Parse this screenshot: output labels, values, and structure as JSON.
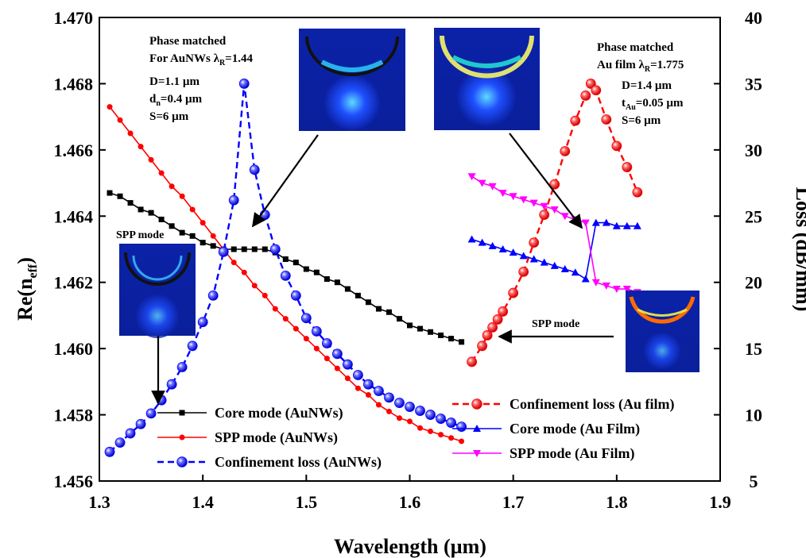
{
  "chart_data": {
    "type": "line",
    "xlabel": "Wavelength (µm)",
    "ylabel_left": "Re(n_eff)",
    "ylabel_left_main": "Re(n",
    "ylabel_left_sub": "eff",
    "ylabel_left_close": ")",
    "ylabel_right": "Loss (dB/mm)",
    "xlim": [
      1.3,
      1.9
    ],
    "ylim_left": [
      1.456,
      1.47
    ],
    "ylim_right": [
      5,
      40
    ],
    "x_ticks": [
      "1.3",
      "1.4",
      "1.5",
      "1.6",
      "1.7",
      "1.8",
      "1.9"
    ],
    "y_left_ticks": [
      "1.456",
      "1.458",
      "1.460",
      "1.462",
      "1.464",
      "1.466",
      "1.468",
      "1.470"
    ],
    "y_right_ticks": [
      "5",
      "10",
      "15",
      "20",
      "25",
      "30",
      "35",
      "40"
    ],
    "grid": false,
    "series": [
      {
        "name": "Core mode (AuNWs)",
        "axis": "left",
        "color": "#000000",
        "marker": "square",
        "dash": false,
        "x": [
          1.31,
          1.32,
          1.33,
          1.34,
          1.35,
          1.36,
          1.37,
          1.38,
          1.39,
          1.4,
          1.41,
          1.42,
          1.43,
          1.44,
          1.45,
          1.46,
          1.47,
          1.48,
          1.49,
          1.5,
          1.51,
          1.52,
          1.53,
          1.54,
          1.55,
          1.56,
          1.57,
          1.58,
          1.59,
          1.6,
          1.61,
          1.62,
          1.63,
          1.64,
          1.65
        ],
        "y": [
          1.4647,
          1.4646,
          1.4644,
          1.4642,
          1.4641,
          1.4639,
          1.4637,
          1.4635,
          1.4634,
          1.4632,
          1.4631,
          1.463,
          1.463,
          1.463,
          1.463,
          1.463,
          1.4629,
          1.4627,
          1.4626,
          1.4624,
          1.4623,
          1.4621,
          1.462,
          1.4618,
          1.4616,
          1.4614,
          1.4612,
          1.4611,
          1.4609,
          1.4607,
          1.4606,
          1.4605,
          1.4604,
          1.4603,
          1.4602
        ]
      },
      {
        "name": "SPP mode (AuNWs)",
        "axis": "left",
        "color": "#ff0000",
        "marker": "circle",
        "dash": false,
        "x": [
          1.31,
          1.32,
          1.33,
          1.34,
          1.35,
          1.36,
          1.37,
          1.38,
          1.39,
          1.4,
          1.41,
          1.42,
          1.43,
          1.44,
          1.45,
          1.46,
          1.47,
          1.48,
          1.49,
          1.5,
          1.51,
          1.52,
          1.53,
          1.54,
          1.55,
          1.56,
          1.57,
          1.58,
          1.59,
          1.6,
          1.61,
          1.62,
          1.63,
          1.64,
          1.65
        ],
        "y": [
          1.4673,
          1.4669,
          1.4665,
          1.4661,
          1.4657,
          1.4653,
          1.4649,
          1.4646,
          1.4642,
          1.4638,
          1.4634,
          1.463,
          1.4626,
          1.4623,
          1.4619,
          1.4616,
          1.4612,
          1.4609,
          1.4606,
          1.4603,
          1.46,
          1.4597,
          1.4594,
          1.4591,
          1.4588,
          1.4586,
          1.4583,
          1.4581,
          1.4579,
          1.4578,
          1.4576,
          1.4575,
          1.4574,
          1.4573,
          1.4572
        ]
      },
      {
        "name": "Confinement loss (AuNWs)",
        "axis": "right",
        "color": "#0000ff",
        "marker": "sphere",
        "dash": true,
        "x": [
          1.31,
          1.32,
          1.33,
          1.34,
          1.35,
          1.36,
          1.37,
          1.38,
          1.39,
          1.4,
          1.41,
          1.42,
          1.43,
          1.44,
          1.45,
          1.46,
          1.47,
          1.48,
          1.49,
          1.5,
          1.51,
          1.52,
          1.53,
          1.54,
          1.55,
          1.56,
          1.57,
          1.58,
          1.59,
          1.6,
          1.61,
          1.62,
          1.63,
          1.64,
          1.65
        ],
        "y": [
          7.2,
          7.9,
          8.6,
          9.3,
          10.1,
          11.1,
          12.3,
          13.6,
          15.2,
          17.0,
          19.0,
          22.3,
          26.2,
          35.0,
          28.5,
          25.1,
          22.5,
          20.5,
          19.0,
          17.3,
          16.3,
          15.4,
          14.6,
          13.8,
          13.0,
          12.3,
          11.8,
          11.3,
          10.9,
          10.6,
          10.3,
          10.0,
          9.7,
          9.4,
          9.1
        ]
      },
      {
        "name": "Confinement loss (Au film)",
        "axis": "right",
        "color": "#ff0000",
        "marker": "sphere",
        "dash": true,
        "x": [
          1.66,
          1.67,
          1.675,
          1.68,
          1.685,
          1.69,
          1.7,
          1.71,
          1.72,
          1.73,
          1.74,
          1.75,
          1.76,
          1.77,
          1.775,
          1.78,
          1.79,
          1.8,
          1.81,
          1.82
        ],
        "y": [
          14.0,
          15.2,
          16.0,
          16.6,
          17.2,
          17.8,
          19.2,
          20.8,
          23.0,
          25.1,
          27.4,
          29.9,
          32.2,
          34.1,
          35.0,
          34.5,
          32.3,
          30.3,
          28.7,
          26.8
        ]
      },
      {
        "name": "Core mode (Au Film)",
        "axis": "left",
        "color": "#0000ff",
        "marker": "triangle-up",
        "dash": false,
        "x": [
          1.66,
          1.67,
          1.68,
          1.69,
          1.7,
          1.71,
          1.72,
          1.73,
          1.74,
          1.75,
          1.76,
          1.77,
          1.78,
          1.79,
          1.8,
          1.81,
          1.82
        ],
        "y": [
          1.4633,
          1.4632,
          1.4631,
          1.463,
          1.4629,
          1.4628,
          1.4627,
          1.4626,
          1.4625,
          1.4624,
          1.4623,
          1.4621,
          1.4638,
          1.4638,
          1.4637,
          1.4637,
          1.4637
        ]
      },
      {
        "name": "SPP mode (Au Film)",
        "axis": "left",
        "color": "#ff00ff",
        "marker": "triangle-down",
        "dash": false,
        "x": [
          1.66,
          1.67,
          1.68,
          1.69,
          1.7,
          1.71,
          1.72,
          1.73,
          1.74,
          1.75,
          1.76,
          1.77,
          1.78,
          1.79,
          1.8,
          1.81,
          1.82
        ],
        "y": [
          1.4652,
          1.465,
          1.4649,
          1.4647,
          1.4646,
          1.4645,
          1.4644,
          1.4643,
          1.4642,
          1.464,
          1.4639,
          1.4638,
          1.462,
          1.4619,
          1.4618,
          1.4618,
          1.4617
        ]
      }
    ],
    "legend_left": [
      "Core mode (AuNWs)",
      "SPP mode (AuNWs)",
      "Confinement loss (AuNWs)"
    ],
    "legend_right": [
      "Confinement loss (Au film)",
      "Core mode (Au Film)",
      "SPP mode (Au Film)"
    ],
    "annotations": {
      "left_title_1": "Phase matched",
      "left_title_2_pre": "For AuNWs λ",
      "left_title_2_sub": "R",
      "left_title_2_post": "=1.44",
      "left_D": "D=1.1 µm",
      "left_dn_pre": "d",
      "left_dn_sub": "n",
      "left_dn_post": "=0.4 µm",
      "left_S": "S=6 µm",
      "right_title_1": "Phase matched",
      "right_title_2_pre": "Au film λ",
      "right_title_2_sub": "R",
      "right_title_2_post": "=1.775",
      "right_D": "D=1.4 µm",
      "right_t_pre": "t",
      "right_t_sub": "Au",
      "right_t_post": "=0.05 µm",
      "right_S": "S=6 µm",
      "spp_left": "SPP mode",
      "spp_right": "SPP mode"
    }
  }
}
